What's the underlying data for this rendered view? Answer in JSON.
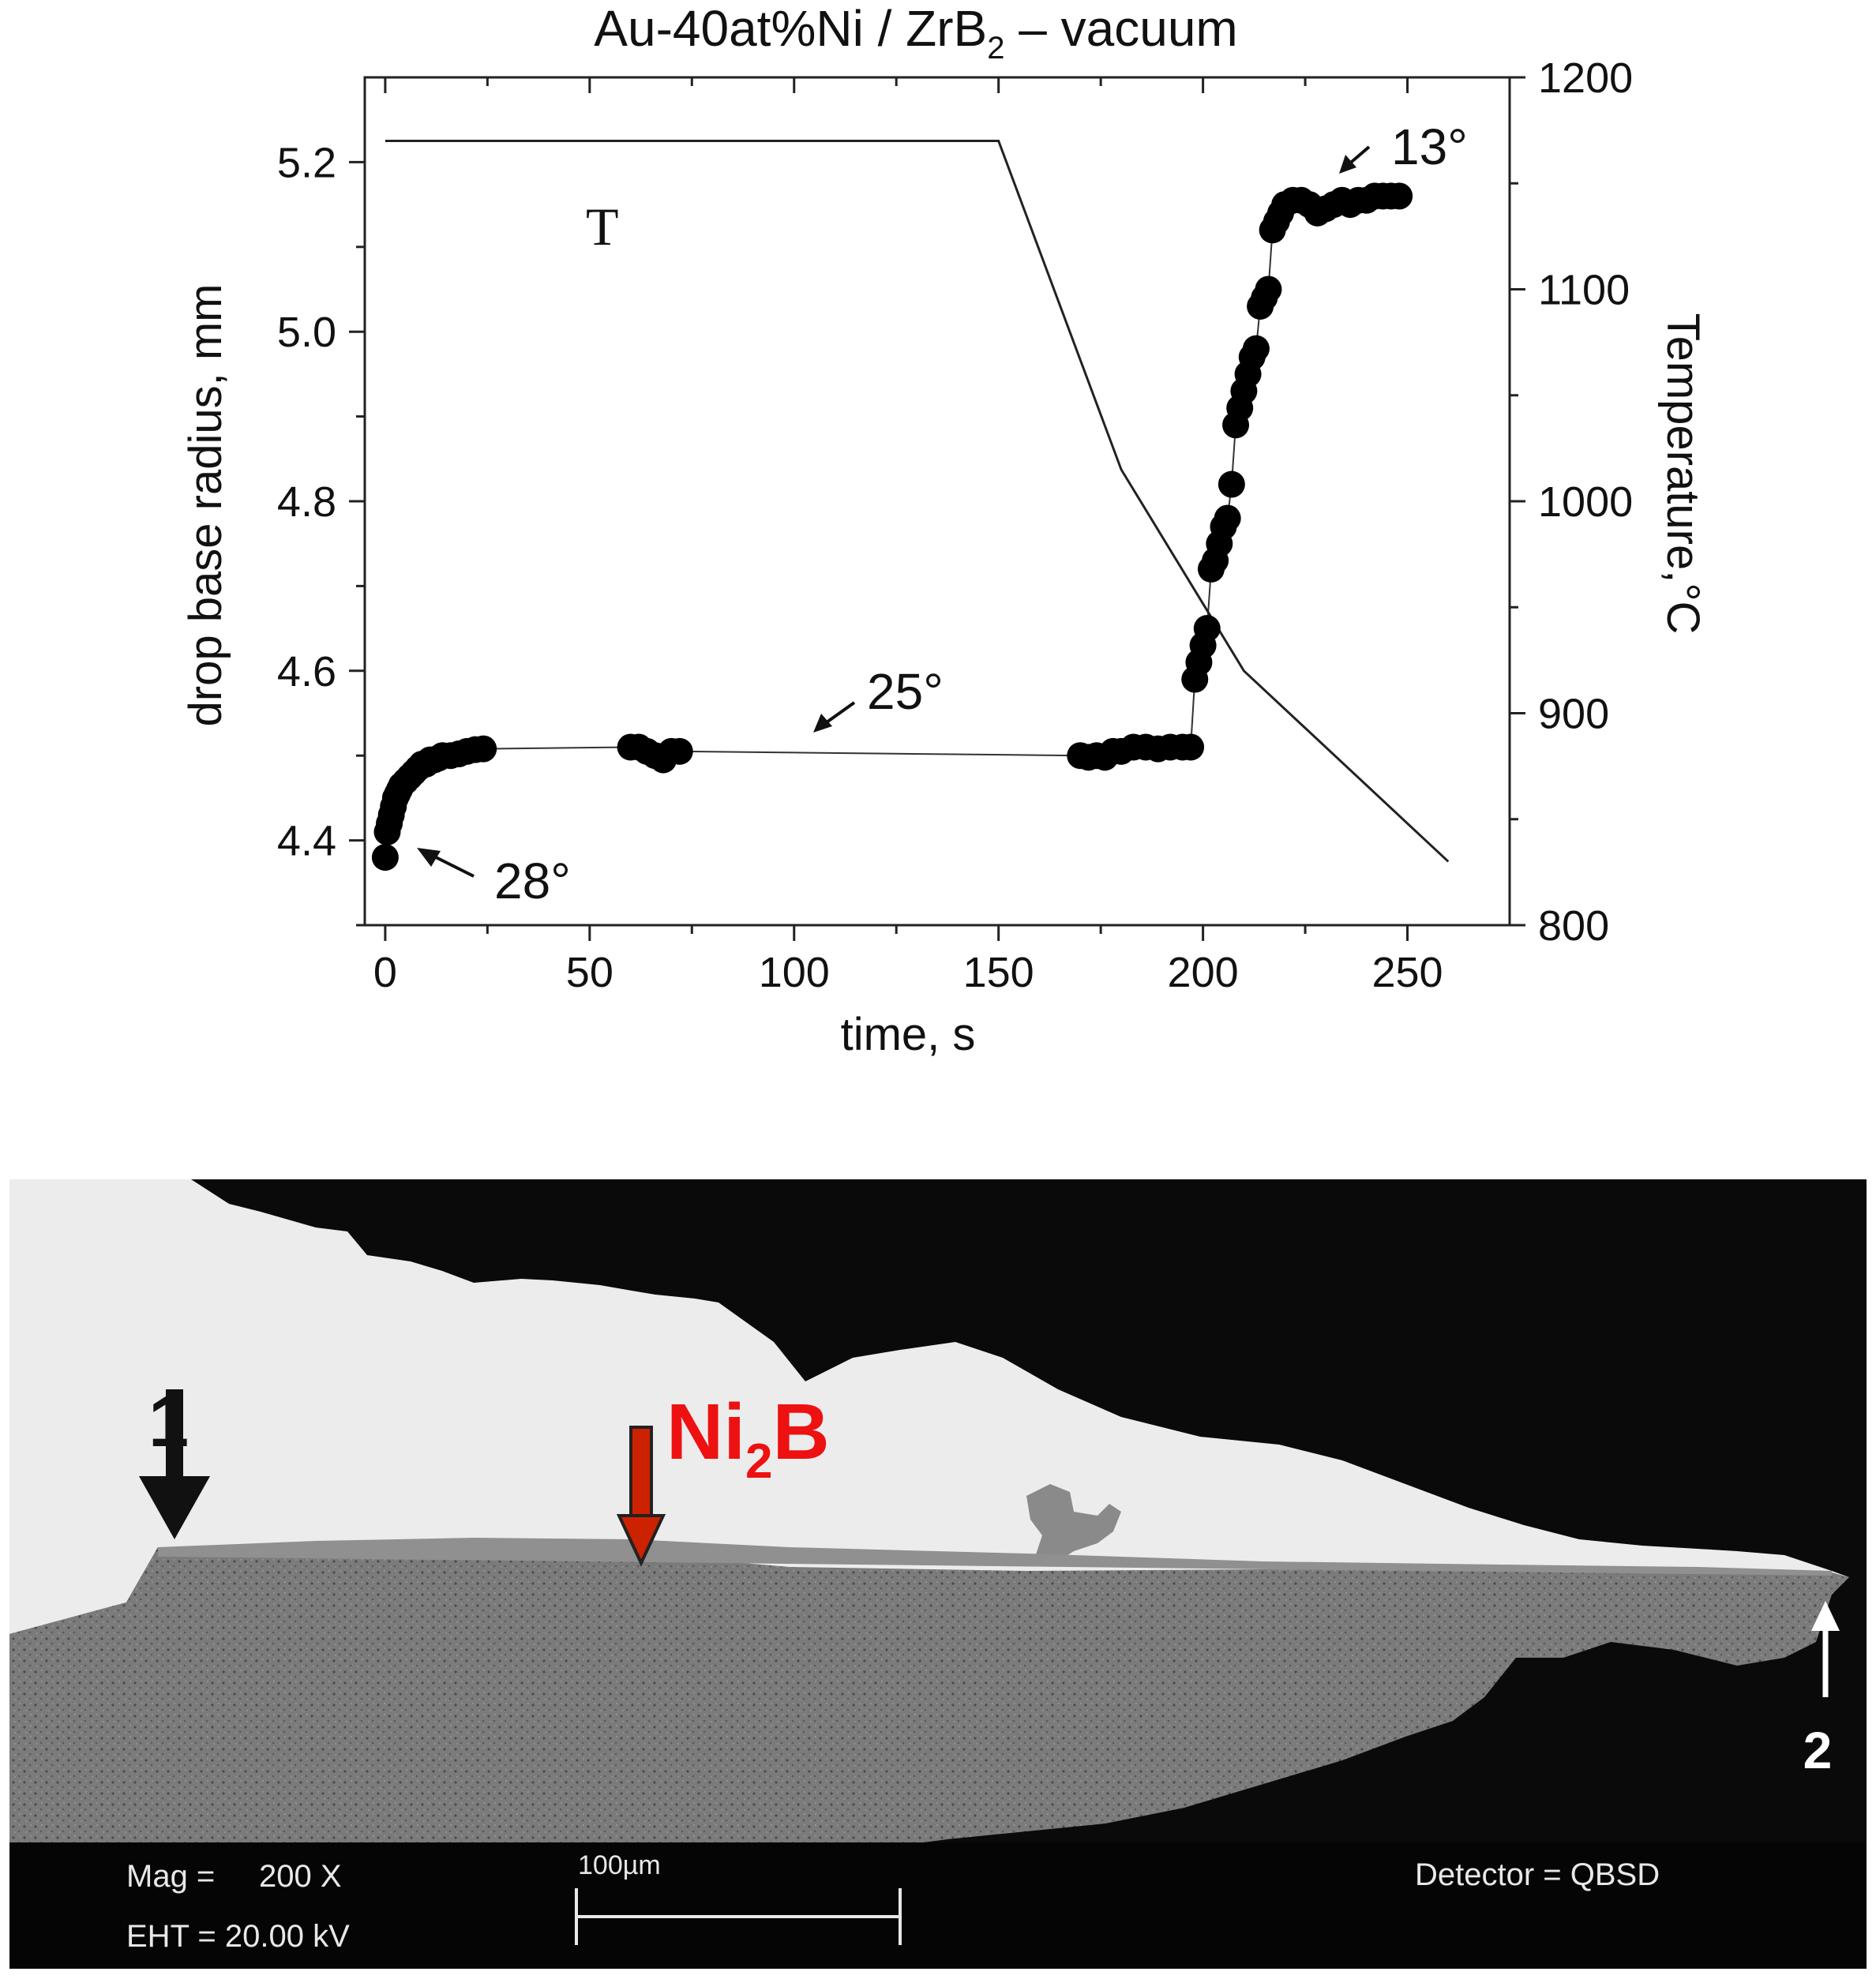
{
  "chart_data": {
    "type": "scatter",
    "title": "Au-40at%Ni / ZrB",
    "title_sub": "2",
    "title_suffix": " – vacuum",
    "xlabel": "time, s",
    "ylabel": "drop base radius, mm",
    "y2label": "Temperature,°C",
    "xlim": [
      -5,
      275
    ],
    "ylim": [
      4.3,
      5.3
    ],
    "y2lim": [
      800,
      1200
    ],
    "xticks": [
      "0",
      "50",
      "100",
      "150",
      "200",
      "250"
    ],
    "xtick_values": [
      0,
      50,
      100,
      150,
      200,
      250
    ],
    "yticks": [
      "4.4",
      "4.6",
      "4.8",
      "5.0",
      "5.2"
    ],
    "ytick_values": [
      4.4,
      4.6,
      4.8,
      5.0,
      5.2
    ],
    "y2ticks": [
      "800",
      "900",
      "1000",
      "1100",
      "1200"
    ],
    "y2tick_values": [
      800,
      900,
      1000,
      1100,
      1200
    ],
    "series": [
      {
        "axis": "left",
        "marker": "filled-circle",
        "points": [
          [
            0,
            4.38
          ],
          [
            0.5,
            4.41
          ],
          [
            1,
            4.42
          ],
          [
            1.5,
            4.43
          ],
          [
            2,
            4.44
          ],
          [
            2.5,
            4.45
          ],
          [
            3,
            4.455
          ],
          [
            3.5,
            4.46
          ],
          [
            4,
            4.465
          ],
          [
            5,
            4.47
          ],
          [
            6,
            4.475
          ],
          [
            7,
            4.48
          ],
          [
            8,
            4.485
          ],
          [
            9,
            4.49
          ],
          [
            10,
            4.49
          ],
          [
            11,
            4.495
          ],
          [
            12,
            4.495
          ],
          [
            13,
            4.497
          ],
          [
            14,
            4.5
          ],
          [
            16,
            4.5
          ],
          [
            18,
            4.502
          ],
          [
            20,
            4.505
          ],
          [
            22,
            4.507
          ],
          [
            24,
            4.508
          ],
          [
            60,
            4.51
          ],
          [
            62,
            4.51
          ],
          [
            64,
            4.505
          ],
          [
            66,
            4.5
          ],
          [
            68,
            4.495
          ],
          [
            70,
            4.505
          ],
          [
            72,
            4.505
          ],
          [
            170,
            4.5
          ],
          [
            172,
            4.498
          ],
          [
            174,
            4.5
          ],
          [
            176,
            4.498
          ],
          [
            178,
            4.505
          ],
          [
            180,
            4.505
          ],
          [
            183,
            4.51
          ],
          [
            186,
            4.51
          ],
          [
            189,
            4.508
          ],
          [
            192,
            4.51
          ],
          [
            195,
            4.51
          ],
          [
            197,
            4.51
          ],
          [
            198,
            4.59
          ],
          [
            199,
            4.61
          ],
          [
            200,
            4.63
          ],
          [
            201,
            4.65
          ],
          [
            202,
            4.72
          ],
          [
            203,
            4.73
          ],
          [
            204,
            4.75
          ],
          [
            205,
            4.77
          ],
          [
            206,
            4.78
          ],
          [
            207,
            4.82
          ],
          [
            208,
            4.89
          ],
          [
            209,
            4.91
          ],
          [
            210,
            4.93
          ],
          [
            211,
            4.95
          ],
          [
            212,
            4.97
          ],
          [
            213,
            4.98
          ],
          [
            214,
            5.03
          ],
          [
            215,
            5.04
          ],
          [
            216,
            5.05
          ],
          [
            217,
            5.12
          ],
          [
            218,
            5.13
          ],
          [
            219,
            5.14
          ],
          [
            220,
            5.15
          ],
          [
            222,
            5.155
          ],
          [
            224,
            5.155
          ],
          [
            226,
            5.15
          ],
          [
            228,
            5.14
          ],
          [
            230,
            5.145
          ],
          [
            232,
            5.15
          ],
          [
            234,
            5.155
          ],
          [
            236,
            5.15
          ],
          [
            238,
            5.155
          ],
          [
            240,
            5.155
          ],
          [
            242,
            5.16
          ],
          [
            244,
            5.16
          ],
          [
            246,
            5.16
          ],
          [
            248,
            5.16
          ]
        ]
      },
      {
        "name": "T",
        "axis": "right",
        "type": "line",
        "points": [
          [
            0,
            1170
          ],
          [
            150,
            1170
          ],
          [
            180,
            1015
          ],
          [
            210,
            920
          ],
          [
            260,
            830
          ]
        ]
      }
    ],
    "annotations": [
      {
        "text": "28°"
      },
      {
        "text": "25°"
      },
      {
        "text": "13°"
      }
    ]
  },
  "micrograph": {
    "label_1": "1",
    "label_ni": "Ni",
    "label_ni_sub": "2",
    "label_b": "B",
    "label_2": "2",
    "mag_label": "Mag =",
    "mag_value": "200 X",
    "eht_label": "EHT = 20.00 kV",
    "scalebar_label": "100µm",
    "detector_label": "Detector = QBSD",
    "colors": {
      "ni2b_label": "#ee1111",
      "ni2b_arrow": "#cc2200"
    }
  }
}
